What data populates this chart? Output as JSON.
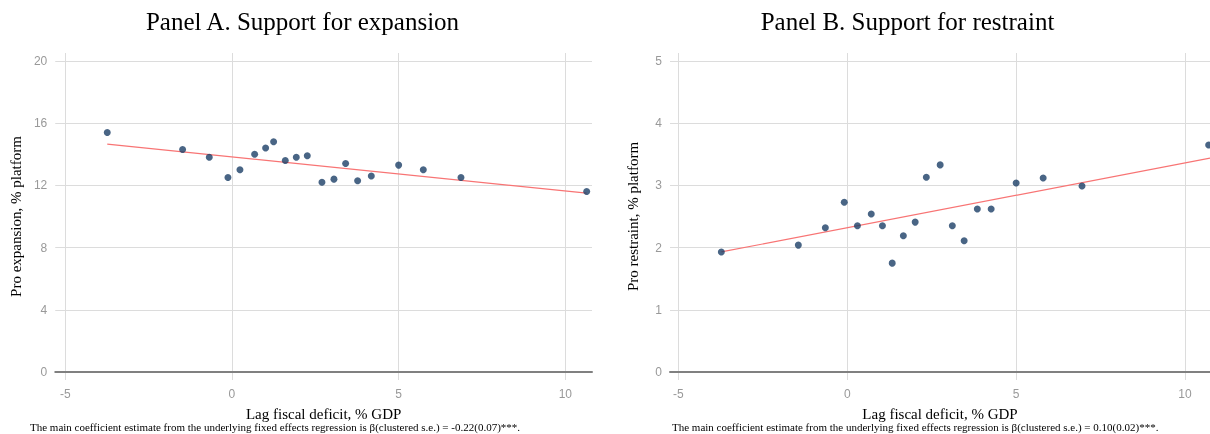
{
  "chart_data": [
    {
      "type": "scatter",
      "title": "Panel A. Support for expansion",
      "xlabel": "Lag fiscal deficit, % GDP",
      "ylabel": "Pro expansion, % platform",
      "annotations": [
        "The main coefficient estimate from the underlying fixed effects regression is β(clustered s.e.) = -0.22(0.07)***."
      ],
      "series": [
        {
          "color": "#1b3f66",
          "marker": "circle",
          "x": [
            -3.74,
            -1.48,
            -0.68,
            -0.12,
            0.24,
            0.68,
            1.01,
            1.25,
            1.6,
            1.93,
            2.26,
            2.7,
            3.06,
            3.41,
            3.77,
            4.18,
            5.0,
            5.74,
            6.87,
            10.64
          ],
          "values": [
            15.4,
            14.3,
            13.8,
            12.5,
            13.0,
            14.0,
            14.4,
            14.8,
            13.6,
            13.8,
            13.9,
            12.2,
            12.4,
            13.4,
            12.3,
            12.6,
            13.3,
            13.0,
            12.5,
            11.6
          ]
        },
        {
          "type": "line",
          "color": "#f87474",
          "marker": "none",
          "x": [
            -3.74,
            10.64
          ],
          "values": [
            14.65,
            11.5
          ]
        }
      ],
      "xlim": [
        -5.3,
        10.8
      ],
      "xticks": [
        -5,
        0,
        5,
        10
      ],
      "ylim": [
        -0.5,
        20.5
      ],
      "yticks": [
        0,
        4,
        8,
        12,
        16,
        20
      ],
      "grid": true
    },
    {
      "type": "scatter",
      "title": "Panel B. Support for restraint",
      "xlabel": "Lag fiscal deficit, % GDP",
      "ylabel": "Pro restraint, % platform",
      "annotations": [
        "The main coefficient estimate from the underlying fixed effects regression is β(clustered s.e.) = 0.10(0.02)***."
      ],
      "series": [
        {
          "color": "#1b3f66",
          "marker": "circle",
          "x": [
            -3.73,
            -1.45,
            -0.65,
            -0.09,
            0.3,
            0.71,
            1.04,
            1.33,
            1.66,
            2.01,
            2.34,
            2.75,
            3.11,
            3.46,
            3.85,
            4.26,
            5.0,
            5.8,
            6.95,
            10.7
          ],
          "values": [
            1.93,
            2.04,
            2.32,
            2.73,
            2.35,
            2.54,
            2.35,
            1.75,
            2.19,
            2.41,
            3.13,
            3.33,
            2.35,
            2.11,
            2.62,
            2.62,
            3.04,
            3.12,
            2.99,
            3.65
          ]
        },
        {
          "type": "line",
          "color": "#f87474",
          "marker": "none",
          "x": [
            -3.73,
            10.74
          ],
          "values": [
            1.93,
            3.44
          ]
        }
      ],
      "xlim": [
        -5.25,
        10.74
      ],
      "xticks": [
        -5,
        0,
        5,
        10
      ],
      "ylim": [
        -0.13,
        5.13
      ],
      "yticks": [
        0,
        1,
        2,
        3,
        4,
        5
      ],
      "grid": true
    }
  ]
}
